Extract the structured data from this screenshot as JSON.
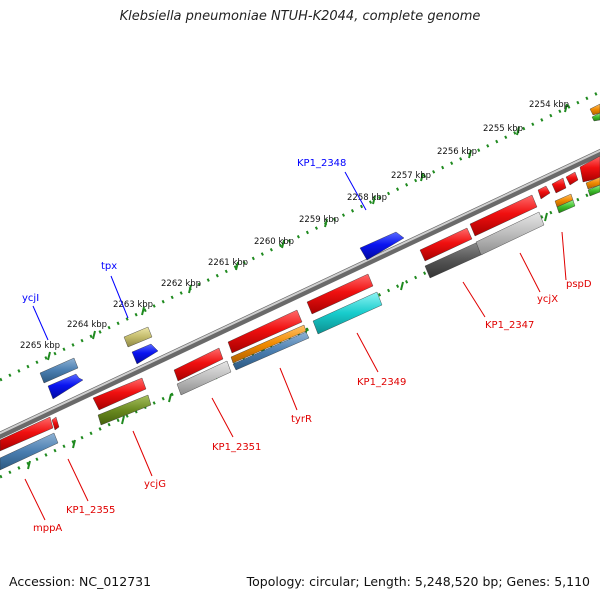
{
  "title": "Klebsiella pneumoniae NTUH-K2044, complete genome",
  "footer": {
    "accession": "Accession: NC_012731",
    "topology": "Topology: circular; Length: 5,248,520 bp; Genes: 5,110"
  },
  "colors": {
    "backbone": "#8c8c8c",
    "ruler": "#1f8a1f",
    "forward_label": "#0000ff",
    "reverse_label": "#e00000",
    "forward_gene": "#0a14f0",
    "reverse_gene": "#f01010"
  },
  "scale_labels": [
    "2254 kbp",
    "2255 kbp",
    "2256 kbp",
    "2257 kbp",
    "2258 kbp",
    "2259 kbp",
    "2260 kbp",
    "2261 kbp",
    "2262 kbp",
    "2263 kbp",
    "2264 kbp",
    "2265 kbp"
  ],
  "gene_labels": {
    "forward": [
      "ycjI",
      "tpx",
      "KP1_2348"
    ],
    "reverse": [
      "mppA",
      "KP1_2355",
      "ycjG",
      "KP1_2351",
      "tyrR",
      "KP1_2349",
      "KP1_2347",
      "ycjX",
      "pspD"
    ]
  }
}
